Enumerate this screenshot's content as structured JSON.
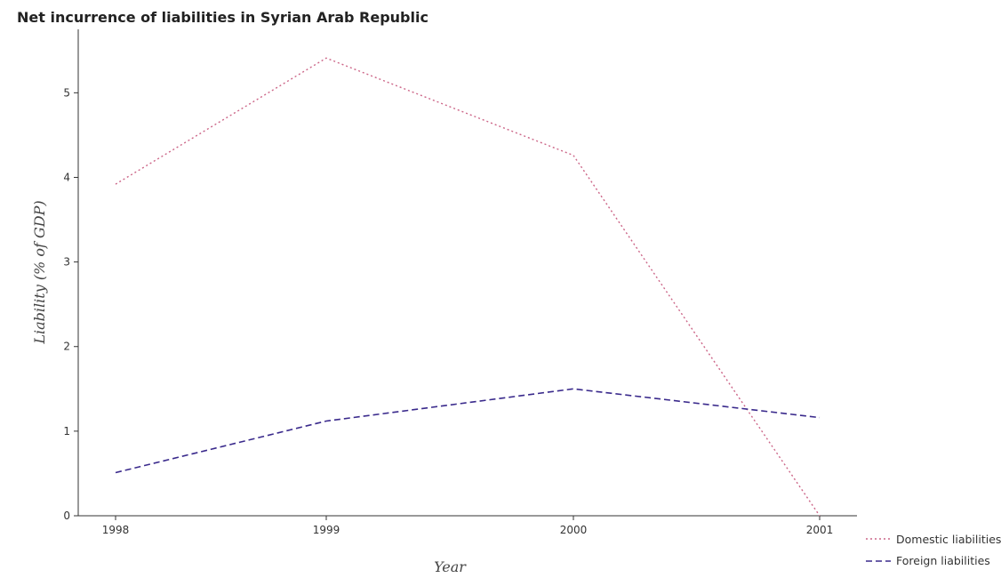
{
  "chart_data": {
    "type": "line",
    "title": "Net incurrence of liabilities in Syrian Arab Republic",
    "xlabel": "Year",
    "ylabel": "Liability (% of GDP)",
    "categories": [
      "1998",
      "1999",
      "2000",
      "2001"
    ],
    "yticks": [
      "0",
      "1",
      "2",
      "3",
      "4",
      "5"
    ],
    "ylim": [
      0,
      5.75
    ],
    "grid": false,
    "legend_position": "bottom-right",
    "series": [
      {
        "name": "Domestic liabilities",
        "values": [
          3.92,
          5.41,
          4.26,
          0
        ],
        "color": "#cc6688",
        "style": "dotted"
      },
      {
        "name": "Foreign liabilities",
        "values": [
          0.51,
          1.12,
          1.5,
          1.16
        ],
        "color": "#3a2a8c",
        "style": "dashed"
      }
    ]
  }
}
